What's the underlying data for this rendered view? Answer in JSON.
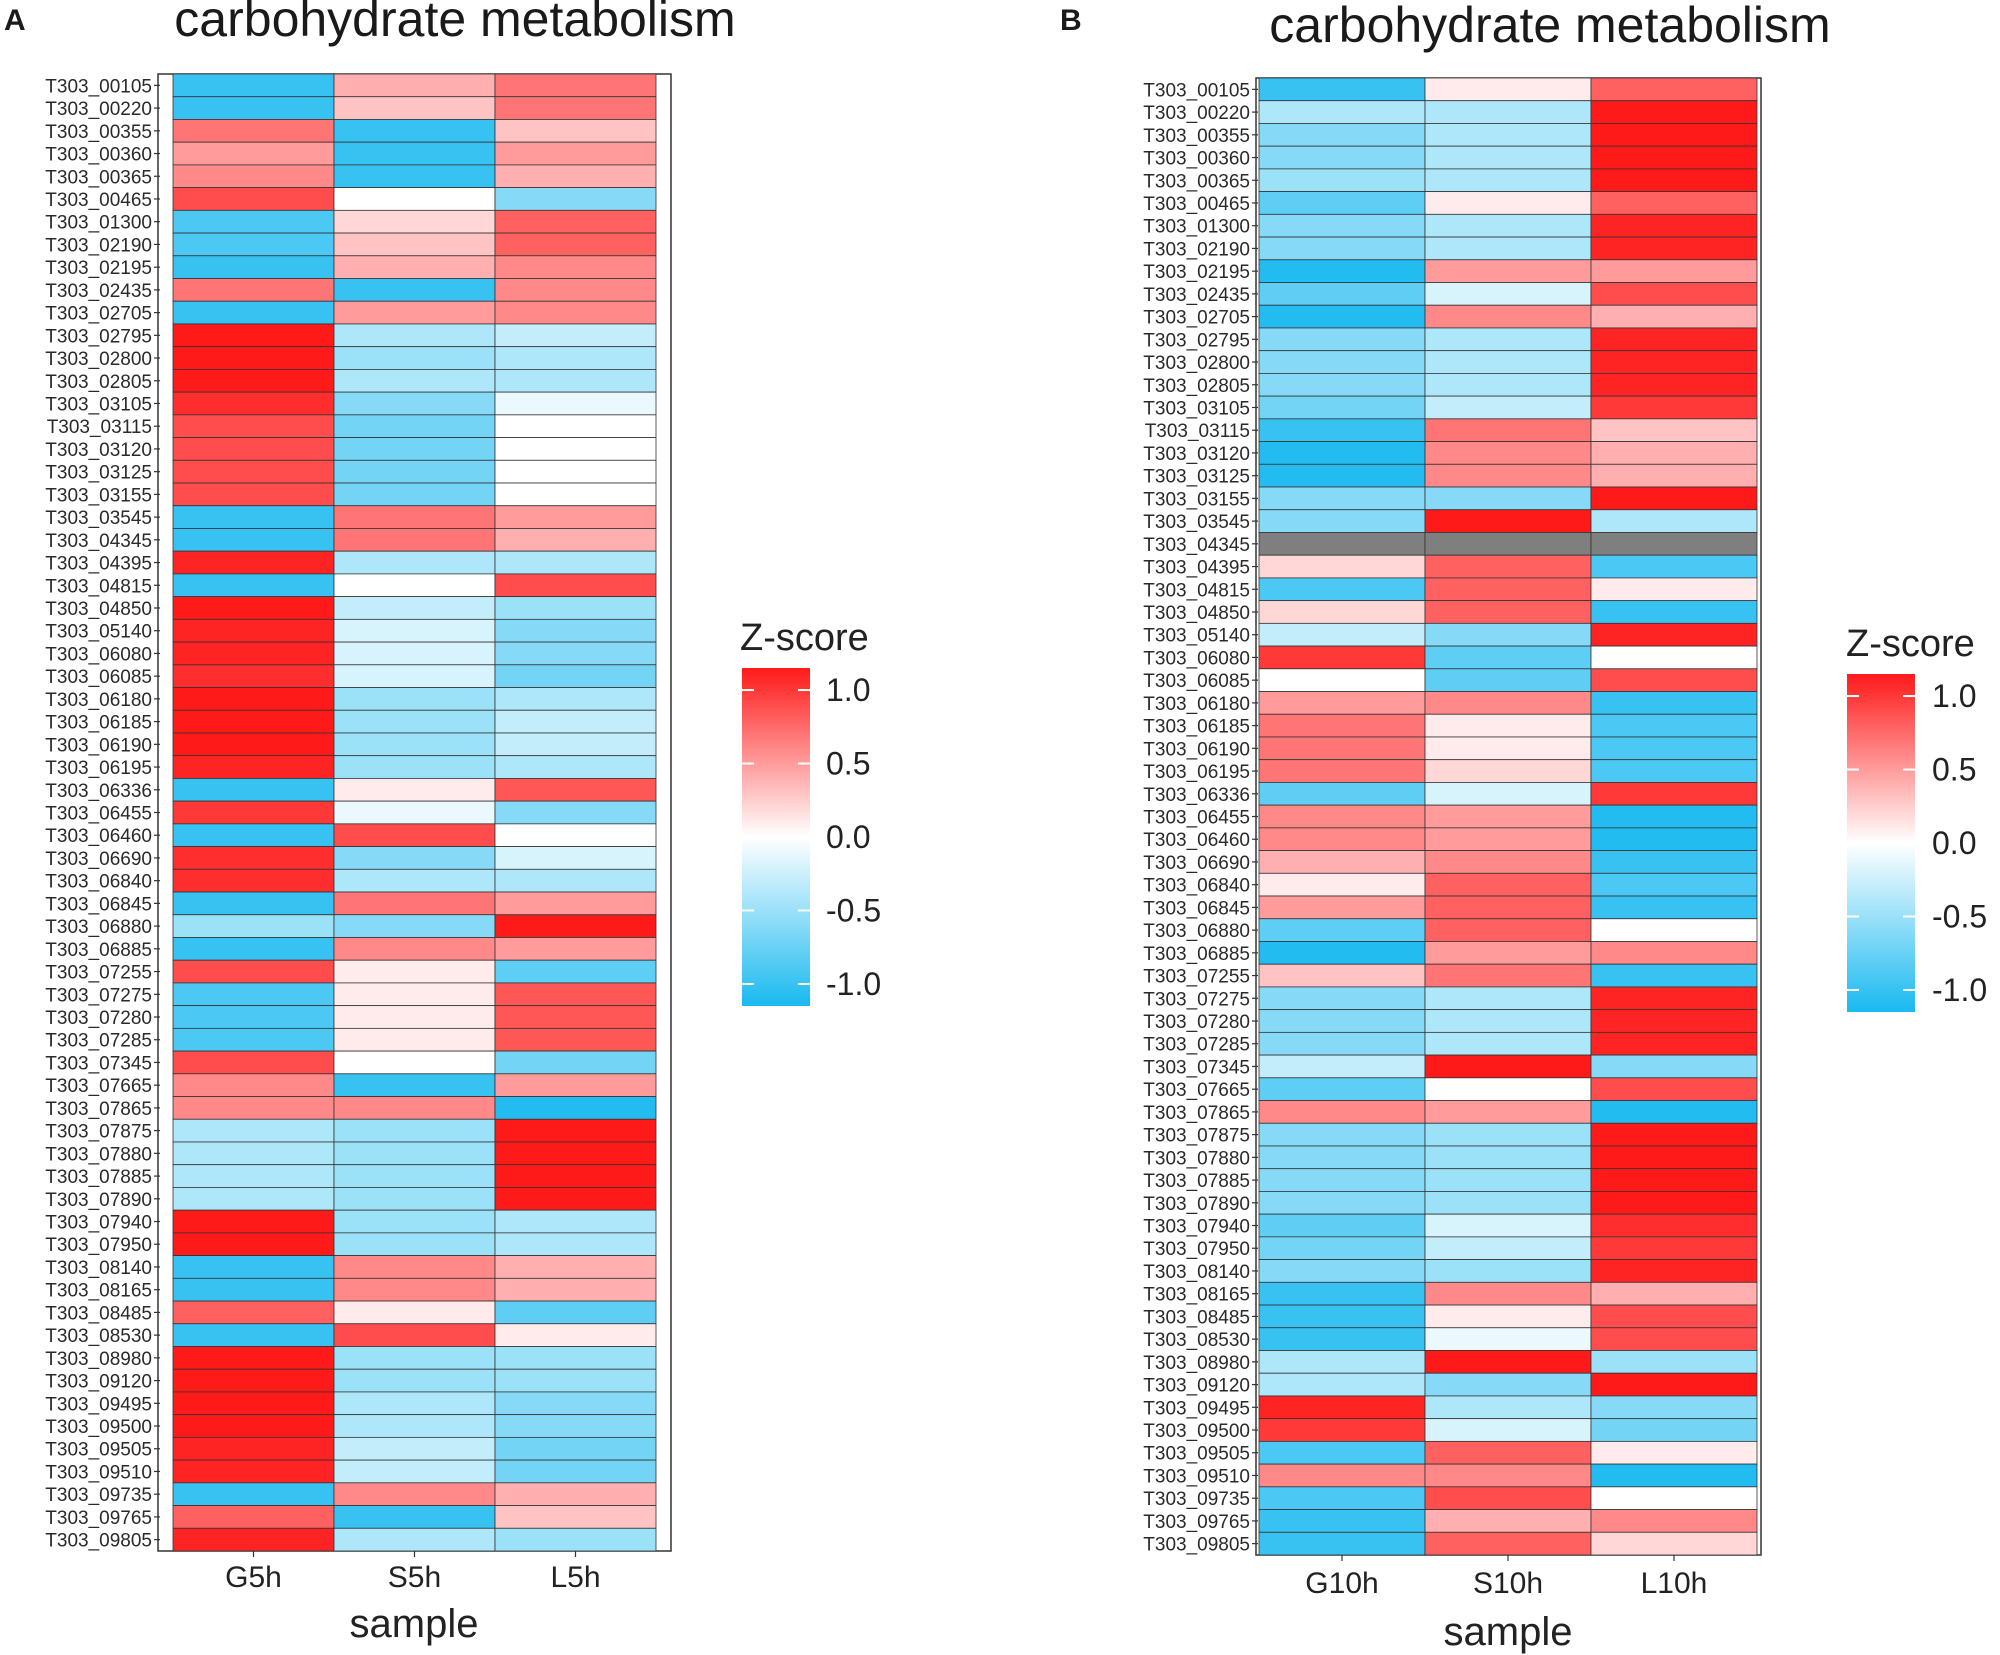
{
  "figure": {
    "colors": {
      "high": "#ff1a1a",
      "mid": "#ffffff",
      "low": "#19b9f0",
      "missing": "#7f7f7f",
      "cell_border": "#333333"
    }
  },
  "chart_data": [
    {
      "type": "heatmap",
      "panel": "A",
      "title": "carbohydrate metabolism",
      "xlabel": "sample",
      "columns": [
        "G5h",
        "S5h",
        "L5h"
      ],
      "rows": [
        "T303_00105",
        "T303_00220",
        "T303_00355",
        "T303_00360",
        "T303_00365",
        "T303_00465",
        "T303_01300",
        "T303_02190",
        "T303_02195",
        "T303_02435",
        "T303_02705",
        "T303_02795",
        "T303_02800",
        "T303_02805",
        "T303_03105",
        "T303_03115",
        "T303_03120",
        "T303_03125",
        "T303_03155",
        "T303_03545",
        "T303_04345",
        "T303_04395",
        "T303_04815",
        "T303_04850",
        "T303_05140",
        "T303_06080",
        "T303_06085",
        "T303_06180",
        "T303_06185",
        "T303_06190",
        "T303_06195",
        "T303_06336",
        "T303_06455",
        "T303_06460",
        "T303_06690",
        "T303_06840",
        "T303_06845",
        "T303_06880",
        "T303_06885",
        "T303_07255",
        "T303_07275",
        "T303_07280",
        "T303_07285",
        "T303_07345",
        "T303_07665",
        "T303_07865",
        "T303_07875",
        "T303_07880",
        "T303_07885",
        "T303_07890",
        "T303_07940",
        "T303_07950",
        "T303_08140",
        "T303_08165",
        "T303_08485",
        "T303_08530",
        "T303_08980",
        "T303_09120",
        "T303_09495",
        "T303_09500",
        "T303_09505",
        "T303_09510",
        "T303_09735",
        "T303_09765",
        "T303_09805"
      ],
      "values": [
        [
          -1.0,
          0.4,
          0.7
        ],
        [
          -1.0,
          0.3,
          0.7
        ],
        [
          0.7,
          -1.0,
          0.3
        ],
        [
          0.5,
          -1.0,
          0.5
        ],
        [
          0.6,
          -1.0,
          0.4
        ],
        [
          0.9,
          0.0,
          -0.6
        ],
        [
          -0.9,
          0.2,
          0.8
        ],
        [
          -0.9,
          0.3,
          0.8
        ],
        [
          -1.0,
          0.4,
          0.6
        ],
        [
          0.7,
          -1.0,
          0.6
        ],
        [
          -1.0,
          0.5,
          0.6
        ],
        [
          1.15,
          -0.4,
          -0.3
        ],
        [
          1.15,
          -0.5,
          -0.4
        ],
        [
          1.15,
          -0.4,
          -0.4
        ],
        [
          1.05,
          -0.6,
          -0.1
        ],
        [
          0.9,
          -0.7,
          0.0
        ],
        [
          0.9,
          -0.7,
          0.0
        ],
        [
          0.9,
          -0.7,
          0.0
        ],
        [
          0.9,
          -0.7,
          0.0
        ],
        [
          -1.0,
          0.7,
          0.5
        ],
        [
          -1.0,
          0.7,
          0.4
        ],
        [
          1.1,
          -0.4,
          -0.4
        ],
        [
          -1.0,
          0.0,
          0.9
        ],
        [
          1.15,
          -0.3,
          -0.5
        ],
        [
          1.1,
          -0.2,
          -0.6
        ],
        [
          1.1,
          -0.2,
          -0.6
        ],
        [
          1.05,
          -0.2,
          -0.7
        ],
        [
          1.15,
          -0.5,
          -0.4
        ],
        [
          1.15,
          -0.5,
          -0.3
        ],
        [
          1.15,
          -0.5,
          -0.3
        ],
        [
          1.1,
          -0.5,
          -0.4
        ],
        [
          -1.0,
          0.1,
          0.85
        ],
        [
          1.0,
          -0.1,
          -0.6
        ],
        [
          -1.0,
          0.9,
          0.0
        ],
        [
          1.05,
          -0.6,
          -0.2
        ],
        [
          1.05,
          -0.4,
          -0.4
        ],
        [
          -1.0,
          0.7,
          0.5
        ],
        [
          -0.5,
          -0.6,
          1.2
        ],
        [
          -1.0,
          0.6,
          0.5
        ],
        [
          0.9,
          0.1,
          -0.8
        ],
        [
          -0.9,
          0.1,
          0.85
        ],
        [
          -0.9,
          0.1,
          0.85
        ],
        [
          -0.9,
          0.1,
          0.85
        ],
        [
          0.9,
          0.0,
          -0.7
        ],
        [
          0.6,
          -1.0,
          0.5
        ],
        [
          0.6,
          0.6,
          -1.1
        ],
        [
          -0.4,
          -0.5,
          1.2
        ],
        [
          -0.4,
          -0.5,
          1.2
        ],
        [
          -0.4,
          -0.5,
          1.2
        ],
        [
          -0.4,
          -0.5,
          1.2
        ],
        [
          1.15,
          -0.5,
          -0.4
        ],
        [
          1.15,
          -0.5,
          -0.4
        ],
        [
          -1.0,
          0.6,
          0.4
        ],
        [
          -1.0,
          0.6,
          0.4
        ],
        [
          0.8,
          0.1,
          -0.8
        ],
        [
          -1.0,
          0.9,
          0.1
        ],
        [
          1.15,
          -0.5,
          -0.5
        ],
        [
          1.15,
          -0.5,
          -0.5
        ],
        [
          1.15,
          -0.4,
          -0.6
        ],
        [
          1.15,
          -0.4,
          -0.6
        ],
        [
          1.1,
          -0.3,
          -0.7
        ],
        [
          1.1,
          -0.3,
          -0.7
        ],
        [
          -1.0,
          0.6,
          0.4
        ],
        [
          0.8,
          -1.0,
          0.3
        ],
        [
          1.1,
          -0.4,
          -0.5
        ]
      ],
      "legend": {
        "title": "Z-score",
        "ticks": [
          "1.0",
          "0.5",
          "0.0",
          "-0.5",
          "-1.0"
        ],
        "tick_values": [
          1.0,
          0.5,
          0.0,
          -0.5,
          -1.0
        ],
        "range": [
          -1.15,
          1.15
        ]
      }
    },
    {
      "type": "heatmap",
      "panel": "B",
      "title": "carbohydrate metabolism",
      "xlabel": "sample",
      "columns": [
        "G10h",
        "S10h",
        "L10h"
      ],
      "rows": [
        "T303_00105",
        "T303_00220",
        "T303_00355",
        "T303_00360",
        "T303_00365",
        "T303_00465",
        "T303_01300",
        "T303_02190",
        "T303_02195",
        "T303_02435",
        "T303_02705",
        "T303_02795",
        "T303_02800",
        "T303_02805",
        "T303_03105",
        "T303_03115",
        "T303_03120",
        "T303_03125",
        "T303_03155",
        "T303_03545",
        "T303_04345",
        "T303_04395",
        "T303_04815",
        "T303_04850",
        "T303_05140",
        "T303_06080",
        "T303_06085",
        "T303_06180",
        "T303_06185",
        "T303_06190",
        "T303_06195",
        "T303_06336",
        "T303_06455",
        "T303_06460",
        "T303_06690",
        "T303_06840",
        "T303_06845",
        "T303_06880",
        "T303_06885",
        "T303_07255",
        "T303_07275",
        "T303_07280",
        "T303_07285",
        "T303_07345",
        "T303_07665",
        "T303_07865",
        "T303_07875",
        "T303_07880",
        "T303_07885",
        "T303_07890",
        "T303_07940",
        "T303_07950",
        "T303_08140",
        "T303_08165",
        "T303_08485",
        "T303_08530",
        "T303_08980",
        "T303_09120",
        "T303_09495",
        "T303_09500",
        "T303_09505",
        "T303_09510",
        "T303_09735",
        "T303_09765",
        "T303_09805"
      ],
      "values": [
        [
          -1.0,
          0.1,
          0.8
        ],
        [
          -0.4,
          -0.4,
          1.2
        ],
        [
          -0.6,
          -0.4,
          1.2
        ],
        [
          -0.6,
          -0.4,
          1.2
        ],
        [
          -0.5,
          -0.4,
          1.2
        ],
        [
          -0.8,
          0.1,
          0.8
        ],
        [
          -0.6,
          -0.4,
          1.1
        ],
        [
          -0.6,
          -0.4,
          1.1
        ],
        [
          -1.1,
          0.5,
          0.5
        ],
        [
          -0.8,
          -0.2,
          0.9
        ],
        [
          -1.1,
          0.6,
          0.4
        ],
        [
          -0.6,
          -0.4,
          1.1
        ],
        [
          -0.6,
          -0.4,
          1.1
        ],
        [
          -0.6,
          -0.4,
          1.1
        ],
        [
          -0.7,
          -0.3,
          1.0
        ],
        [
          -1.0,
          0.7,
          0.3
        ],
        [
          -1.1,
          0.6,
          0.4
        ],
        [
          -1.1,
          0.6,
          0.4
        ],
        [
          -0.6,
          -0.6,
          1.2
        ],
        [
          -0.6,
          1.2,
          -0.4
        ],
        [
          null,
          null,
          null
        ],
        [
          0.2,
          0.8,
          -0.9
        ],
        [
          -0.9,
          0.8,
          0.1
        ],
        [
          0.2,
          0.8,
          -1.0
        ],
        [
          -0.3,
          -0.6,
          1.1
        ],
        [
          1.0,
          -0.8,
          0.0
        ],
        [
          0.0,
          -0.8,
          0.9
        ],
        [
          0.5,
          0.6,
          -1.0
        ],
        [
          0.7,
          0.1,
          -0.9
        ],
        [
          0.7,
          0.1,
          -0.9
        ],
        [
          0.7,
          0.2,
          -0.9
        ],
        [
          -0.8,
          -0.2,
          1.0
        ],
        [
          0.6,
          0.5,
          -1.1
        ],
        [
          0.6,
          0.5,
          -1.1
        ],
        [
          0.4,
          0.6,
          -1.0
        ],
        [
          0.1,
          0.8,
          -0.9
        ],
        [
          0.5,
          0.8,
          -1.0
        ],
        [
          -0.8,
          0.8,
          0.0
        ],
        [
          -1.1,
          0.5,
          0.6
        ],
        [
          0.3,
          0.7,
          -1.0
        ],
        [
          -0.6,
          -0.4,
          1.1
        ],
        [
          -0.6,
          -0.4,
          1.1
        ],
        [
          -0.6,
          -0.4,
          1.1
        ],
        [
          -0.3,
          1.2,
          -0.6
        ],
        [
          -0.8,
          0.0,
          0.9
        ],
        [
          0.6,
          0.5,
          -1.1
        ],
        [
          -0.6,
          -0.5,
          1.2
        ],
        [
          -0.6,
          -0.5,
          1.2
        ],
        [
          -0.6,
          -0.5,
          1.2
        ],
        [
          -0.6,
          -0.5,
          1.15
        ],
        [
          -0.8,
          -0.2,
          1.05
        ],
        [
          -0.7,
          -0.3,
          1.0
        ],
        [
          -0.6,
          -0.5,
          1.1
        ],
        [
          -1.0,
          0.6,
          0.4
        ],
        [
          -1.0,
          0.1,
          0.9
        ],
        [
          -1.0,
          -0.1,
          0.9
        ],
        [
          -0.4,
          1.15,
          -0.5
        ],
        [
          -0.4,
          -0.6,
          1.15
        ],
        [
          1.1,
          -0.4,
          -0.6
        ],
        [
          1.0,
          -0.2,
          -0.7
        ],
        [
          -0.9,
          0.8,
          0.1
        ],
        [
          0.6,
          0.6,
          -1.1
        ],
        [
          -0.9,
          0.9,
          0.0
        ],
        [
          -1.0,
          0.4,
          0.6
        ],
        [
          -1.0,
          0.8,
          0.2
        ]
      ],
      "legend": {
        "title": "Z-score",
        "ticks": [
          "1.0",
          "0.5",
          "0.0",
          "-0.5",
          "-1.0"
        ],
        "tick_values": [
          1.0,
          0.5,
          0.0,
          -0.5,
          -1.0
        ],
        "range": [
          -1.15,
          1.15
        ]
      }
    }
  ]
}
